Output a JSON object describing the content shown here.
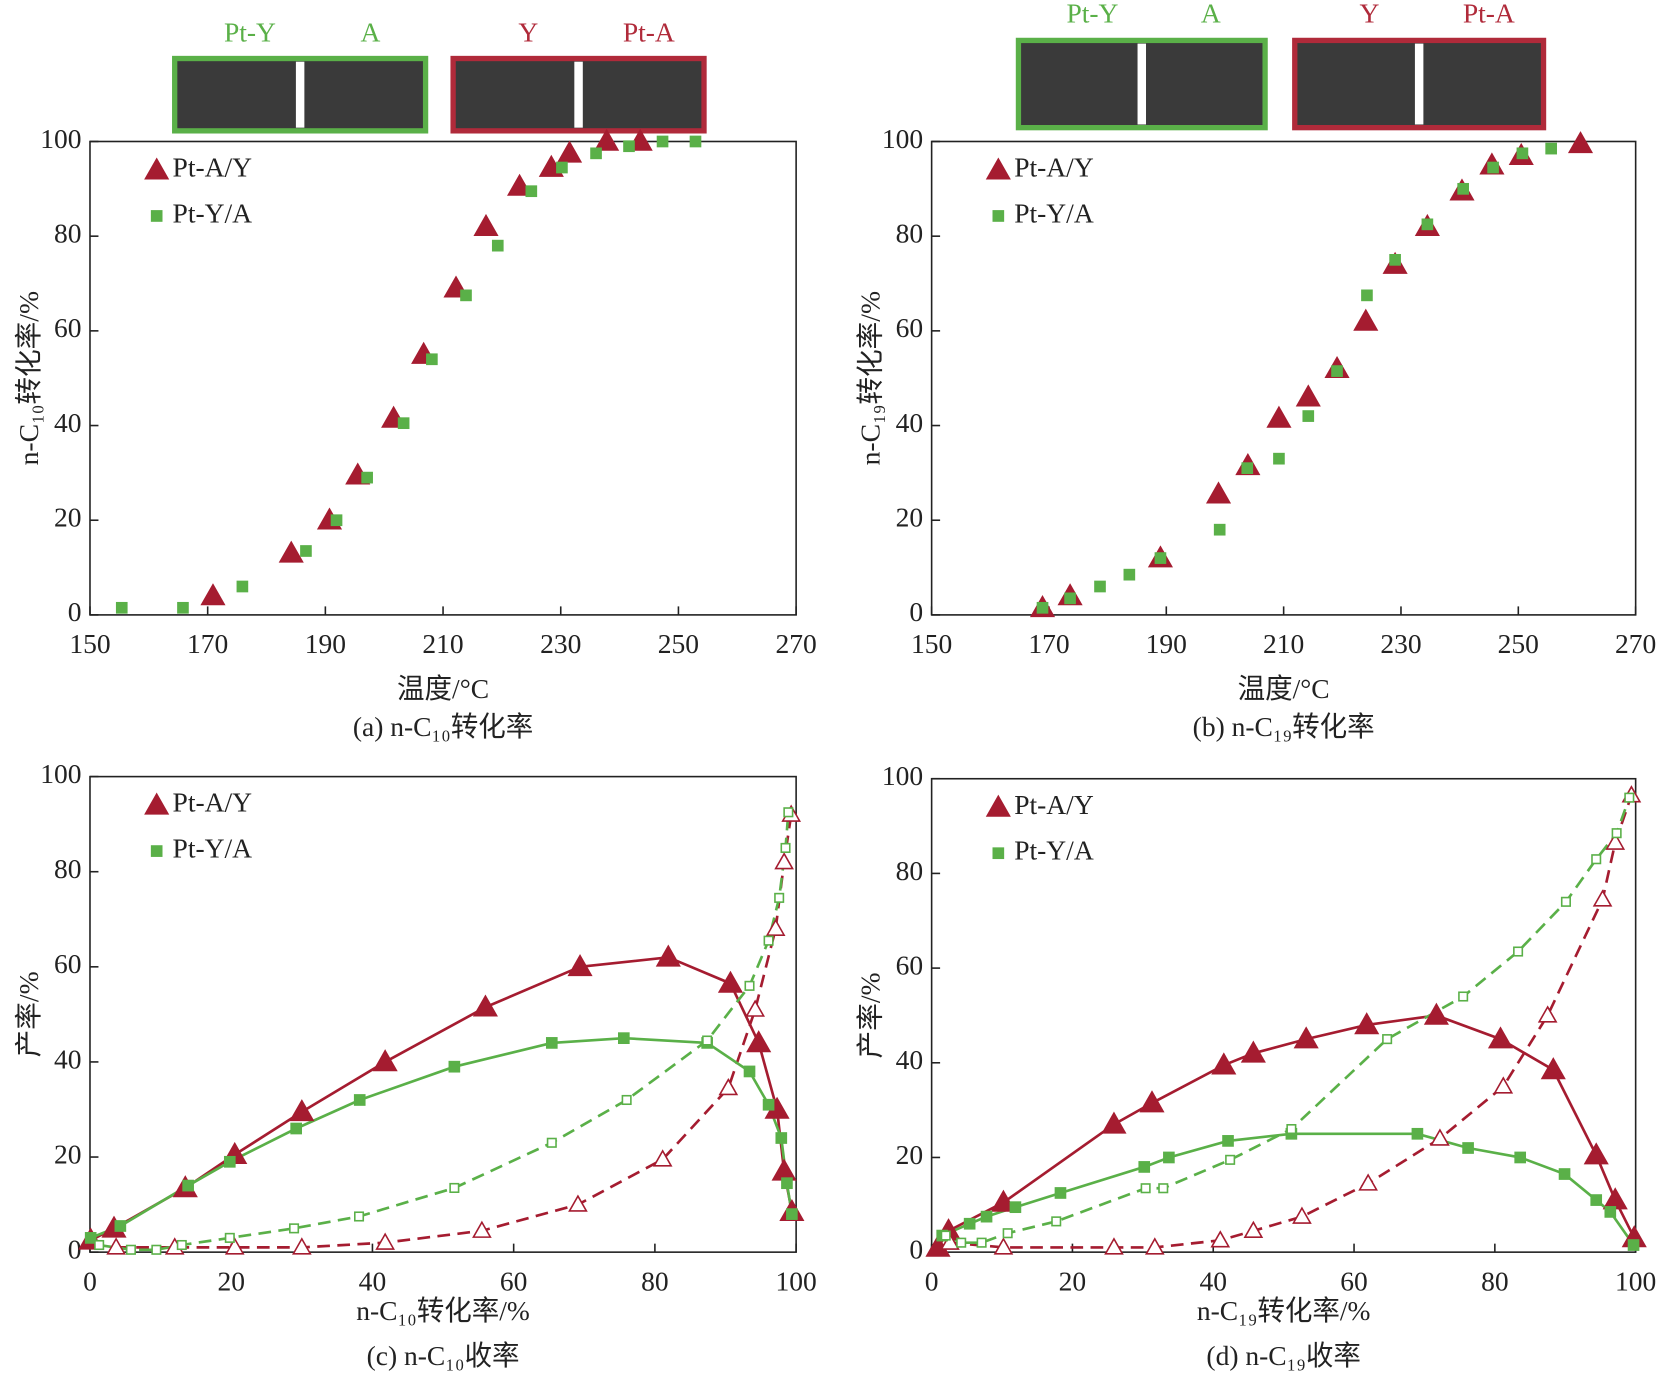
{
  "chart_data": [
    {
      "type": "scatter",
      "x_label": "温度/°C",
      "y_label": "n-C₁₀转化率/%",
      "caption": "(a) n-C₁₀转化率",
      "xlim": [
        150,
        270
      ],
      "xticks": [
        150,
        170,
        190,
        210,
        230,
        250,
        270
      ],
      "ylim": [
        0,
        100
      ],
      "yticks": [
        0,
        20,
        40,
        60,
        80,
        100
      ],
      "legend": "upper left",
      "insets": [
        {
          "labels": [
            "Pt-Y",
            "A"
          ],
          "color": "#5ab048"
        },
        {
          "labels": [
            "Y",
            "Pt-A"
          ],
          "color": "#b02a3a"
        }
      ],
      "series": [
        {
          "name": "Pt-A/Y",
          "color": "#a51c30",
          "marker": "triangle",
          "x": [
            170.9,
            184.2,
            190.7,
            195.5,
            201.6,
            206.7,
            212.2,
            217.3,
            223,
            228.4,
            231.5,
            237.8,
            243.5
          ],
          "values": [
            4,
            13,
            20,
            29.5,
            41.5,
            55,
            69,
            82,
            90.5,
            94.5,
            97.5,
            100,
            100
          ]
        },
        {
          "name": "Pt-Y/A",
          "color": "#5ab048",
          "marker": "square",
          "x": [
            155.4,
            165.8,
            175.9,
            186.7,
            191.9,
            197.1,
            203.3,
            208.1,
            213.9,
            219.3,
            225,
            230.2,
            236,
            241.6,
            247.3,
            252.9
          ],
          "values": [
            1.5,
            1.5,
            6,
            13.5,
            20,
            29,
            40.5,
            54,
            67.5,
            78,
            89.5,
            94.5,
            97.5,
            99,
            100,
            100
          ]
        }
      ]
    },
    {
      "type": "scatter",
      "x_label": "温度/°C",
      "y_label": "n-C₁₉转化率/%",
      "caption": "(b) n-C₁₉转化率",
      "xlim": [
        150,
        270
      ],
      "xticks": [
        150,
        170,
        190,
        210,
        230,
        250,
        270
      ],
      "ylim": [
        0,
        100
      ],
      "yticks": [
        0,
        20,
        40,
        60,
        80,
        100
      ],
      "legend": "upper left",
      "insets": [
        {
          "labels": [
            "Pt-Y",
            "A"
          ],
          "color": "#5ab048"
        },
        {
          "labels": [
            "Y",
            "Pt-A"
          ],
          "color": "#b02a3a"
        }
      ],
      "series": [
        {
          "name": "Pt-A/Y",
          "color": "#a51c30",
          "marker": "triangle",
          "x": [
            168.9,
            173.6,
            189,
            198.9,
            203.9,
            209.2,
            214.2,
            219.1,
            224,
            229,
            234.5,
            240.4,
            245.5,
            250.5,
            260.6
          ],
          "values": [
            1.5,
            4,
            12,
            25.5,
            31.5,
            41.5,
            46,
            52,
            62,
            74,
            82,
            89.5,
            95,
            97,
            99.5
          ]
        },
        {
          "name": "Pt-Y/A",
          "color": "#5ab048",
          "marker": "square",
          "x": [
            168.9,
            173.6,
            178.7,
            183.7,
            189,
            199.1,
            203.8,
            209.2,
            214.2,
            219.1,
            224.2,
            229,
            234.5,
            240.6,
            245.7,
            250.7,
            255.6
          ],
          "values": [
            1.5,
            3.5,
            6,
            8.5,
            12,
            18,
            31,
            33,
            42,
            51.5,
            67.5,
            75,
            82.5,
            90,
            94.5,
            97.5,
            98.5
          ]
        }
      ]
    },
    {
      "type": "line",
      "x_label": "n-C₁₀转化率/%",
      "y_label": "产率/%",
      "caption": "(c) n-C₁₀收率",
      "xlim": [
        0,
        100
      ],
      "xticks": [
        0,
        20,
        40,
        60,
        80,
        100
      ],
      "ylim": [
        0,
        100
      ],
      "yticks": [
        0,
        20,
        40,
        60,
        80,
        100
      ],
      "legend": "upper left",
      "series": [
        {
          "name": "Pt-A/Y",
          "color": "#a51c30",
          "marker": "triangle",
          "curves": [
            {
              "filled": true,
              "dashed": false,
              "x": [
                0.1,
                3.4,
                13.5,
                20.5,
                30,
                41.8,
                56,
                69.4,
                81.9,
                90.7,
                94.7,
                97.3,
                98.3,
                99.4
              ],
              "values": [
                2.5,
                5,
                13.5,
                20.5,
                29.5,
                40,
                51.5,
                60,
                62,
                56.5,
                44,
                30,
                17,
                8.5
              ]
            },
            {
              "filled": false,
              "dashed": true,
              "x": [
                3.7,
                12,
                20.5,
                30,
                41.8,
                55.5,
                69.1,
                81.1,
                90.4,
                94.2,
                97.1,
                98.3,
                99.3
              ],
              "values": [
                1,
                1,
                1,
                1,
                2,
                4.5,
                10,
                19.5,
                34.5,
                51,
                68,
                82,
                92
              ]
            }
          ]
        },
        {
          "name": "Pt-Y/A",
          "color": "#5ab048",
          "marker": "square",
          "curves": [
            {
              "filled": true,
              "dashed": false,
              "x": [
                0.1,
                4.3,
                13.9,
                19.8,
                29.2,
                38.2,
                51.6,
                65.4,
                75.6,
                87.4,
                93.4,
                96.1,
                97.9,
                98.7,
                99.4
              ],
              "values": [
                3,
                5.5,
                14,
                19,
                26,
                32,
                39,
                44,
                45,
                44,
                38,
                31,
                24,
                14.5,
                8
              ]
            },
            {
              "filled": false,
              "dashed": true,
              "x": [
                1.3,
                5.8,
                9.4,
                13,
                19.8,
                28.9,
                38.1,
                51.6,
                65.4,
                76,
                87.4,
                93.4,
                96.1,
                97.6,
                98.5,
                98.9
              ],
              "values": [
                1.5,
                0.5,
                0.5,
                1.5,
                3,
                5,
                7.5,
                13.5,
                23,
                32,
                44.5,
                56,
                65.5,
                74.5,
                85,
                92.5
              ]
            }
          ]
        }
      ]
    },
    {
      "type": "line",
      "x_label": "n-C₁₉转化率/%",
      "y_label": "产率/%",
      "caption": "(d) n-C₁₉收率",
      "xlim": [
        0,
        100
      ],
      "xticks": [
        0,
        20,
        40,
        60,
        80,
        100
      ],
      "ylim": [
        0,
        100
      ],
      "yticks": [
        0,
        20,
        40,
        60,
        80,
        100
      ],
      "legend": "upper left",
      "series": [
        {
          "name": "Pt-A/Y",
          "color": "#a51c30",
          "marker": "triangle",
          "curves": [
            {
              "filled": true,
              "dashed": false,
              "x": [
                0.9,
                2.4,
                10.2,
                25.9,
                31.3,
                41.5,
                45.7,
                53.2,
                61.8,
                71.7,
                80.8,
                88.3,
                94.4,
                97.1,
                99.8
              ],
              "values": [
                1,
                4.5,
                10.5,
                27,
                31.5,
                39.5,
                42,
                45,
                48,
                50,
                45,
                38.5,
                20.5,
                11,
                3
              ]
            },
            {
              "filled": false,
              "dashed": true,
              "x": [
                2.6,
                10.2,
                25.9,
                31.7,
                41,
                45.7,
                52.6,
                62,
                72.2,
                81.2,
                87.5,
                95.3,
                97.1,
                99.4
              ],
              "values": [
                2,
                1,
                1,
                1,
                2.5,
                4.5,
                7.5,
                14.5,
                24,
                35,
                50,
                74.5,
                86.5,
                96.5
              ]
            }
          ]
        },
        {
          "name": "Pt-Y/A",
          "color": "#5ab048",
          "marker": "square",
          "curves": [
            {
              "filled": true,
              "dashed": false,
              "x": [
                1.5,
                5.4,
                7.8,
                11.9,
                18.3,
                30.2,
                33.7,
                42.1,
                51.1,
                69,
                76.2,
                83.6,
                89.9,
                94.4,
                96.4,
                99.7
              ],
              "values": [
                3.5,
                6,
                7.5,
                9.5,
                12.5,
                18,
                20,
                23.5,
                25,
                25,
                22,
                20,
                16.5,
                11,
                8.5,
                1.5
              ]
            },
            {
              "filled": false,
              "dashed": true,
              "x": [
                2,
                4.2,
                7.1,
                10.8,
                17.7,
                30.4,
                32.9,
                42.4,
                51.1,
                64.7,
                75.5,
                83.3,
                90.1,
                94.4,
                97.3,
                99.1
              ],
              "values": [
                3.5,
                2,
                2,
                4,
                6.5,
                13.5,
                13.5,
                19.5,
                26,
                45,
                54,
                63.5,
                74,
                83,
                88.5,
                96
              ]
            }
          ]
        }
      ]
    }
  ]
}
